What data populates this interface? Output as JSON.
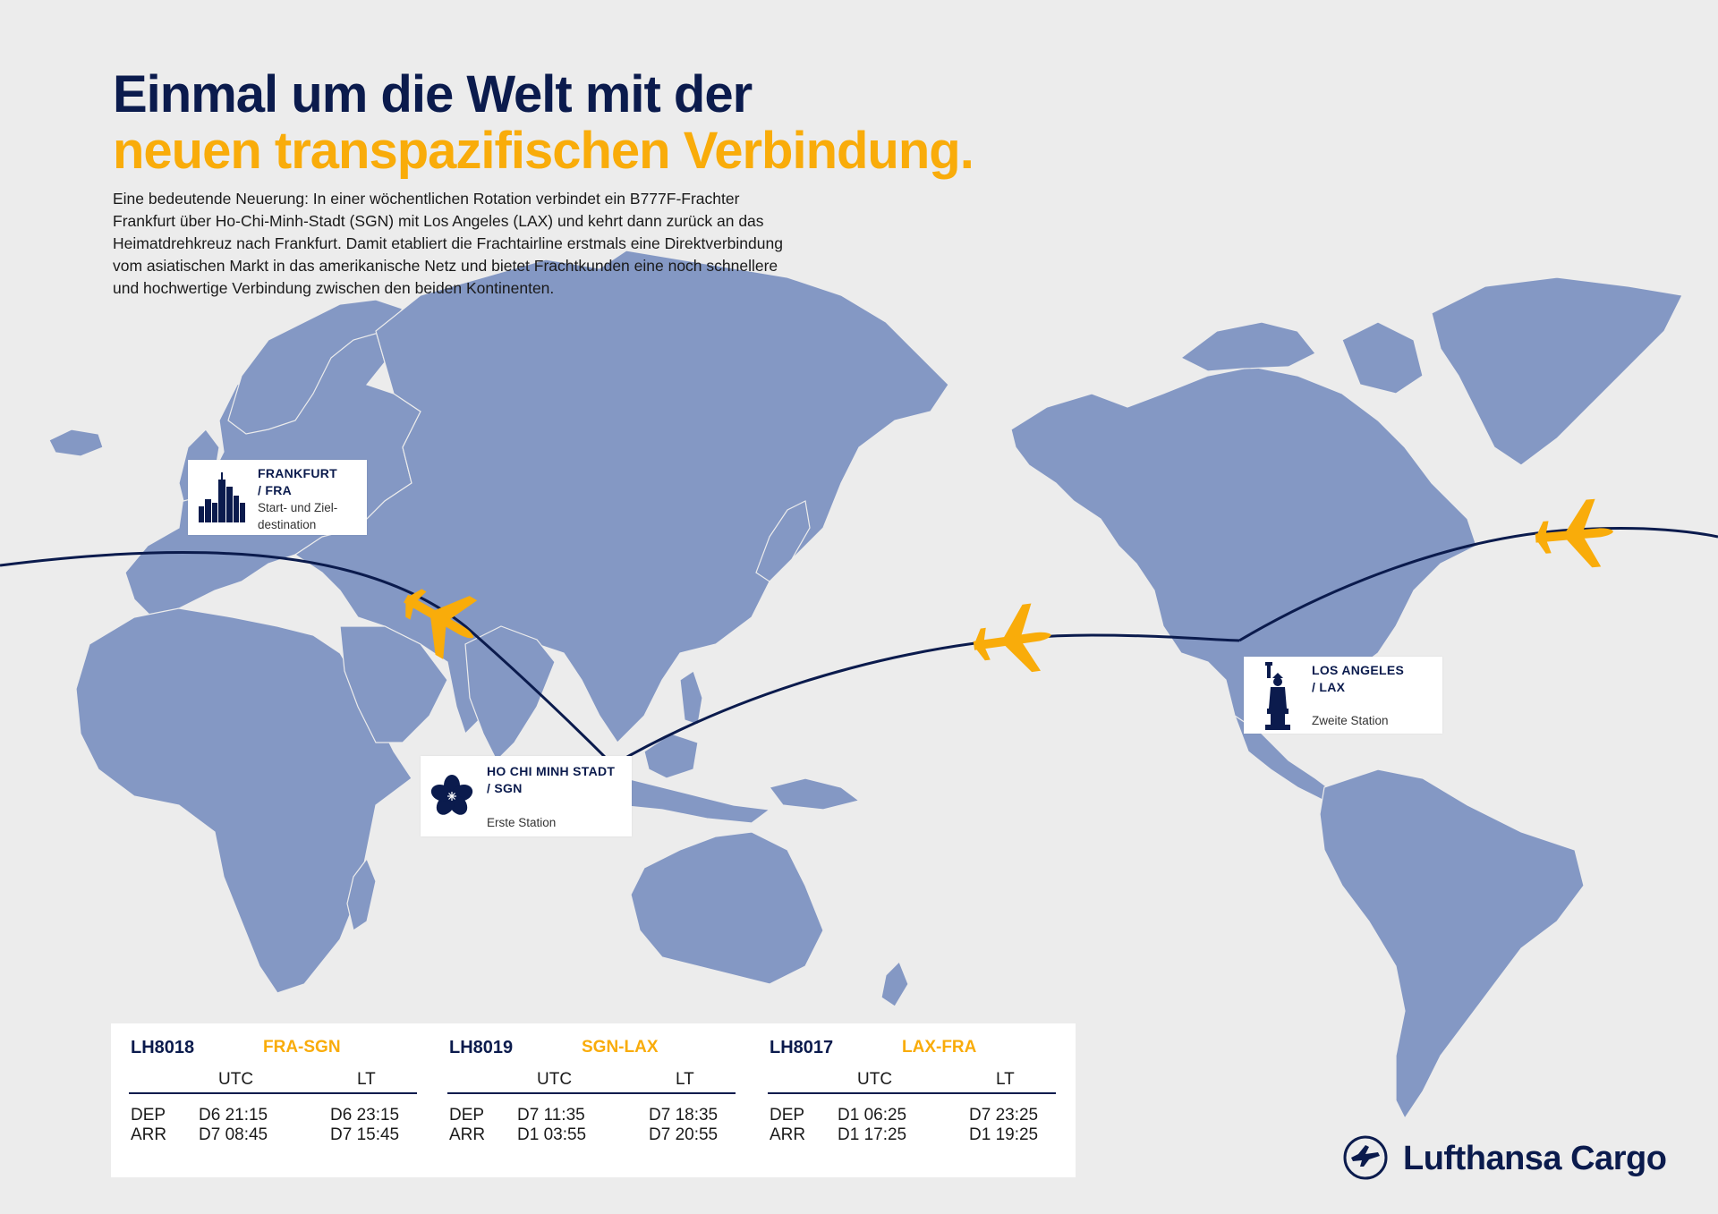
{
  "header": {
    "title_line1": "Einmal um die Welt mit der",
    "title_line2": "neuen transpazifischen Verbindung.",
    "intro_lines": [
      "Eine bedeutende Neuerung: In einer wöchentlichen Rotation verbindet ein B777F-Frachter",
      "Frankfurt über Ho-Chi-Minh-Stadt (SGN) mit Los Angeles (LAX) und kehrt dann zurück an das",
      "Heimatdrehkreuz nach Frankfurt. Damit etabliert die Frachtairline erstmals eine Direktverbindung",
      "vom asiatischen Markt in das amerikanische Netz und bietet Frachtkunden eine noch schnellere",
      "und hochwertige Verbindung zwischen den beiden Kontinenten."
    ]
  },
  "colors": {
    "navy": "#0b1b4d",
    "accent": "#f9ac0a",
    "land": "#8498c4",
    "background": "#ececec"
  },
  "stations": [
    {
      "id": "fra",
      "name_line1": "FRANKFURT",
      "name_line2": "/ FRA",
      "desc_line1": "Start- und Ziel-",
      "desc_line2": "destination",
      "icon": "skyline-icon"
    },
    {
      "id": "sgn",
      "name_line1": "HO CHI MINH STADT",
      "name_line2": "/ SGN",
      "desc_line1": "Erste Station",
      "desc_line2": "",
      "icon": "flower-icon"
    },
    {
      "id": "lax",
      "name_line1": "LOS ANGELES",
      "name_line2": "/ LAX",
      "desc_line1": "Zweite Station",
      "desc_line2": "",
      "icon": "statue-of-liberty-icon"
    }
  ],
  "schedule": {
    "col_utc": "UTC",
    "col_lt": "LT",
    "flights": [
      {
        "flight": "LH8018",
        "route": "FRA-SGN",
        "dep_label": "DEP",
        "arr_label": "ARR",
        "dep_utc": "D6 21:15",
        "dep_lt": "D6 23:15",
        "arr_utc": "D7 08:45",
        "arr_lt": "D7 15:45"
      },
      {
        "flight": "LH8019",
        "route": "SGN-LAX",
        "dep_label": "DEP",
        "arr_label": "ARR",
        "dep_utc": "D7 11:35",
        "dep_lt": "D7 18:35",
        "arr_utc": "D1 03:55",
        "arr_lt": "D7 20:55"
      },
      {
        "flight": "LH8017",
        "route": "LAX-FRA",
        "dep_label": "DEP",
        "arr_label": "ARR",
        "dep_utc": "D1 06:25",
        "dep_lt": "D7 23:25",
        "arr_utc": "D1 17:25",
        "arr_lt": "D1 19:25"
      }
    ]
  },
  "brand": {
    "name": "Lufthansa Cargo",
    "logo_icon": "crane-logo-icon"
  }
}
